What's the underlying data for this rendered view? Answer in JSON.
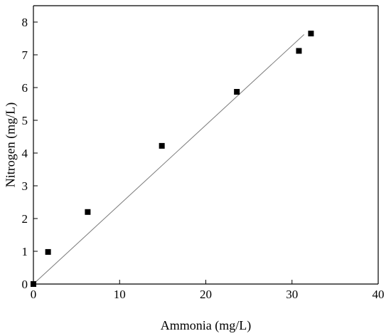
{
  "chart_data": {
    "type": "scatter",
    "title": "",
    "xlabel": "Ammonia (mg/L)",
    "ylabel": "Nitrogen (mg/L)",
    "xlim": [
      0,
      40
    ],
    "ylim": [
      0,
      8.5
    ],
    "x_ticks": [
      0,
      10,
      20,
      30,
      40
    ],
    "y_ticks": [
      0,
      1,
      2,
      3,
      4,
      5,
      6,
      7,
      8
    ],
    "grid": false,
    "legend": "none",
    "series": [
      {
        "marker": "square",
        "color": "#000000",
        "points": [
          {
            "x": 0,
            "y": 0
          },
          {
            "x": 1.7,
            "y": 0.98
          },
          {
            "x": 6.3,
            "y": 2.2
          },
          {
            "x": 14.9,
            "y": 4.22
          },
          {
            "x": 23.6,
            "y": 5.87
          },
          {
            "x": 30.8,
            "y": 7.12
          },
          {
            "x": 32.2,
            "y": 7.65
          }
        ]
      }
    ],
    "fit_line": {
      "color": "#7a7a7a",
      "from": {
        "x": 0,
        "y": 0
      },
      "to": {
        "x": 31.4,
        "y": 7.62
      }
    }
  }
}
